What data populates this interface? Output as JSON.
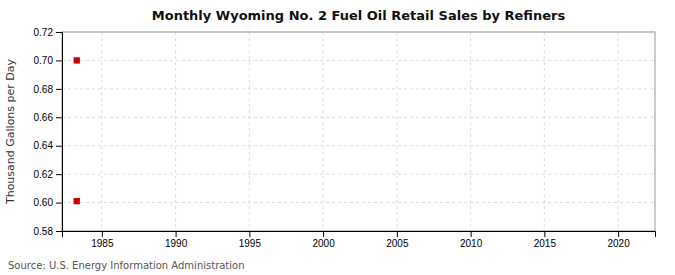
{
  "chart_data": {
    "type": "scatter",
    "title": "Monthly Wyoming No. 2 Fuel Oil Retail Sales by Refiners",
    "ylabel": "Thousand Gallons per Day",
    "source": "Source: U.S. Energy Information Administration",
    "x": [
      1983.3,
      1983.3
    ],
    "values": [
      0.7,
      0.601
    ],
    "color": "#cc0000",
    "marker": "square",
    "xlim": [
      1982.3,
      2022.5
    ],
    "ylim": [
      0.58,
      0.72
    ],
    "xticks": [
      1985,
      1990,
      1995,
      2000,
      2005,
      2010,
      2015,
      2020
    ],
    "yticks": [
      0.58,
      {
        "value": 0.6,
        "label": "0.60"
      },
      0.62,
      0.64,
      0.66,
      0.68,
      {
        "value": 0.7,
        "label": "0.70"
      },
      0.72
    ],
    "grid": true
  }
}
